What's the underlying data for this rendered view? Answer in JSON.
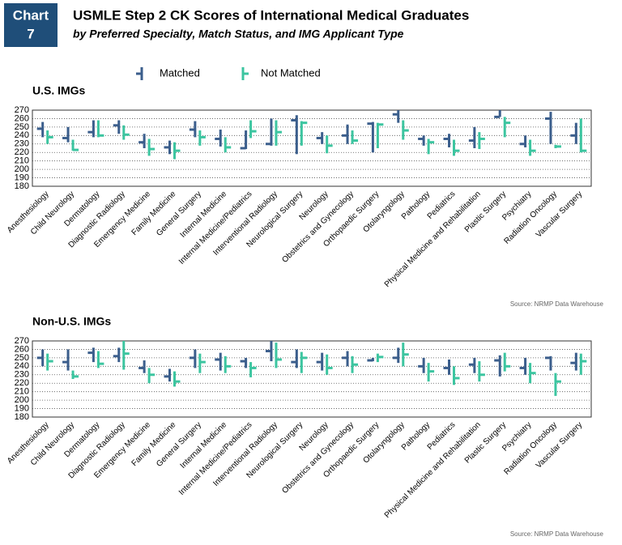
{
  "header": {
    "label": "Chart",
    "number": "7",
    "title": "USMLE Step 2 CK Scores of International Medical Graduates",
    "subtitle": "by Preferred Specialty, Match Status, and IMG Applicant Type"
  },
  "chart_data": [
    {
      "type": "range",
      "title": "U.S. IMGs",
      "source": "Source: NRMP Data Warehouse",
      "categories": [
        "Anesthesiology",
        "Child Neurology",
        "Dermatology",
        "Diagnostic Radiology",
        "Emergency Medicine",
        "Family Medicine",
        "General Surgery",
        "Internal Medicine",
        "Internal Medicine/Pediatrics",
        "Interventional Radiology",
        "Neurological Surgery",
        "Neurology",
        "Obstetrics and Gynecology",
        "Orthopaedic Surgery",
        "Otolaryngology",
        "Pathology",
        "Pediatrics",
        "Physical Medicine and Rehabilitation",
        "Plastic Surgery",
        "Psychiatry",
        "Radiation Oncology",
        "Vascular Surgery"
      ],
      "series": [
        {
          "name": "Matched",
          "color": "#3b5e8c",
          "low": [
            238,
            232,
            238,
            242,
            225,
            218,
            238,
            227,
            224,
            228,
            218,
            230,
            230,
            220,
            255,
            228,
            226,
            225,
            262,
            226,
            230,
            230
          ],
          "high": [
            256,
            250,
            258,
            258,
            242,
            234,
            257,
            247,
            246,
            260,
            264,
            244,
            253,
            256,
            270,
            240,
            242,
            250,
            270,
            240,
            268,
            255
          ],
          "values": [
            248,
            237,
            244,
            252,
            232,
            226,
            247,
            236,
            225,
            230,
            258,
            237,
            240,
            254,
            265,
            236,
            236,
            234,
            262,
            230,
            260,
            240
          ]
        },
        {
          "name": "Not Matched",
          "color": "#3cc5a0",
          "low": [
            230,
            222,
            238,
            235,
            216,
            212,
            228,
            220,
            237,
            228,
            228,
            219,
            230,
            225,
            235,
            218,
            216,
            224,
            238,
            216,
            225,
            220
          ],
          "high": [
            246,
            235,
            258,
            252,
            236,
            232,
            246,
            238,
            258,
            258,
            257,
            240,
            246,
            255,
            258,
            236,
            235,
            244,
            262,
            235,
            229,
            260
          ],
          "values": [
            238,
            223,
            240,
            241,
            224,
            222,
            238,
            226,
            245,
            244,
            255,
            228,
            234,
            253,
            246,
            232,
            222,
            236,
            255,
            222,
            227,
            222
          ]
        }
      ],
      "ylim": [
        180,
        270
      ],
      "yticks": [
        180,
        190,
        200,
        210,
        220,
        230,
        240,
        250,
        260,
        270
      ],
      "grid": true
    },
    {
      "type": "range",
      "title": "Non-U.S. IMGs",
      "source": "Source: NRMP Data Warehouse",
      "categories": [
        "Anesthesiology",
        "Child Neurology",
        "Dermatology",
        "Diagnostic Radiology",
        "Emergency Medicine",
        "Family Medicine",
        "General Surgery",
        "Internal Medicine",
        "Internal Medicine/Pediatrics",
        "Interventional Radiology",
        "Neurological Surgery",
        "Neurology",
        "Obstetrics and Gynecology",
        "Orthopaedic Surgery",
        "Otolaryngology",
        "Pathology",
        "Pediatrics",
        "Physical Medicine and Rehabilitation",
        "Plastic Surgery",
        "Psychiatry",
        "Radiation Oncology",
        "Vascular Surgery"
      ],
      "series": [
        {
          "color": "#3b5e8c",
          "low": [
            240,
            235,
            245,
            245,
            232,
            222,
            238,
            235,
            238,
            246,
            238,
            235,
            240,
            246,
            244,
            232,
            230,
            232,
            228,
            230,
            235,
            235
          ],
          "high": [
            260,
            260,
            262,
            262,
            247,
            237,
            260,
            256,
            250,
            270,
            260,
            256,
            258,
            250,
            262,
            250,
            248,
            250,
            253,
            250,
            252,
            256
          ],
          "values": [
            250,
            245,
            256,
            252,
            238,
            228,
            250,
            248,
            246,
            258,
            245,
            245,
            250,
            247,
            250,
            240,
            238,
            242,
            247,
            238,
            250,
            244
          ]
        },
        {
          "color": "#3cc5a0",
          "low": [
            235,
            225,
            238,
            236,
            220,
            216,
            232,
            232,
            227,
            238,
            232,
            230,
            232,
            245,
            240,
            222,
            218,
            222,
            234,
            220,
            205,
            230
          ],
          "high": [
            255,
            235,
            258,
            270,
            238,
            234,
            255,
            252,
            245,
            268,
            257,
            254,
            252,
            255,
            268,
            244,
            240,
            246,
            256,
            244,
            232,
            255
          ],
          "values": [
            246,
            228,
            243,
            255,
            230,
            222,
            245,
            240,
            238,
            248,
            250,
            238,
            242,
            251,
            254,
            234,
            226,
            230,
            240,
            232,
            222,
            246
          ]
        }
      ],
      "ylim": [
        180,
        270
      ],
      "yticks": [
        180,
        190,
        200,
        210,
        220,
        230,
        240,
        250,
        260,
        270
      ],
      "grid": true
    }
  ]
}
